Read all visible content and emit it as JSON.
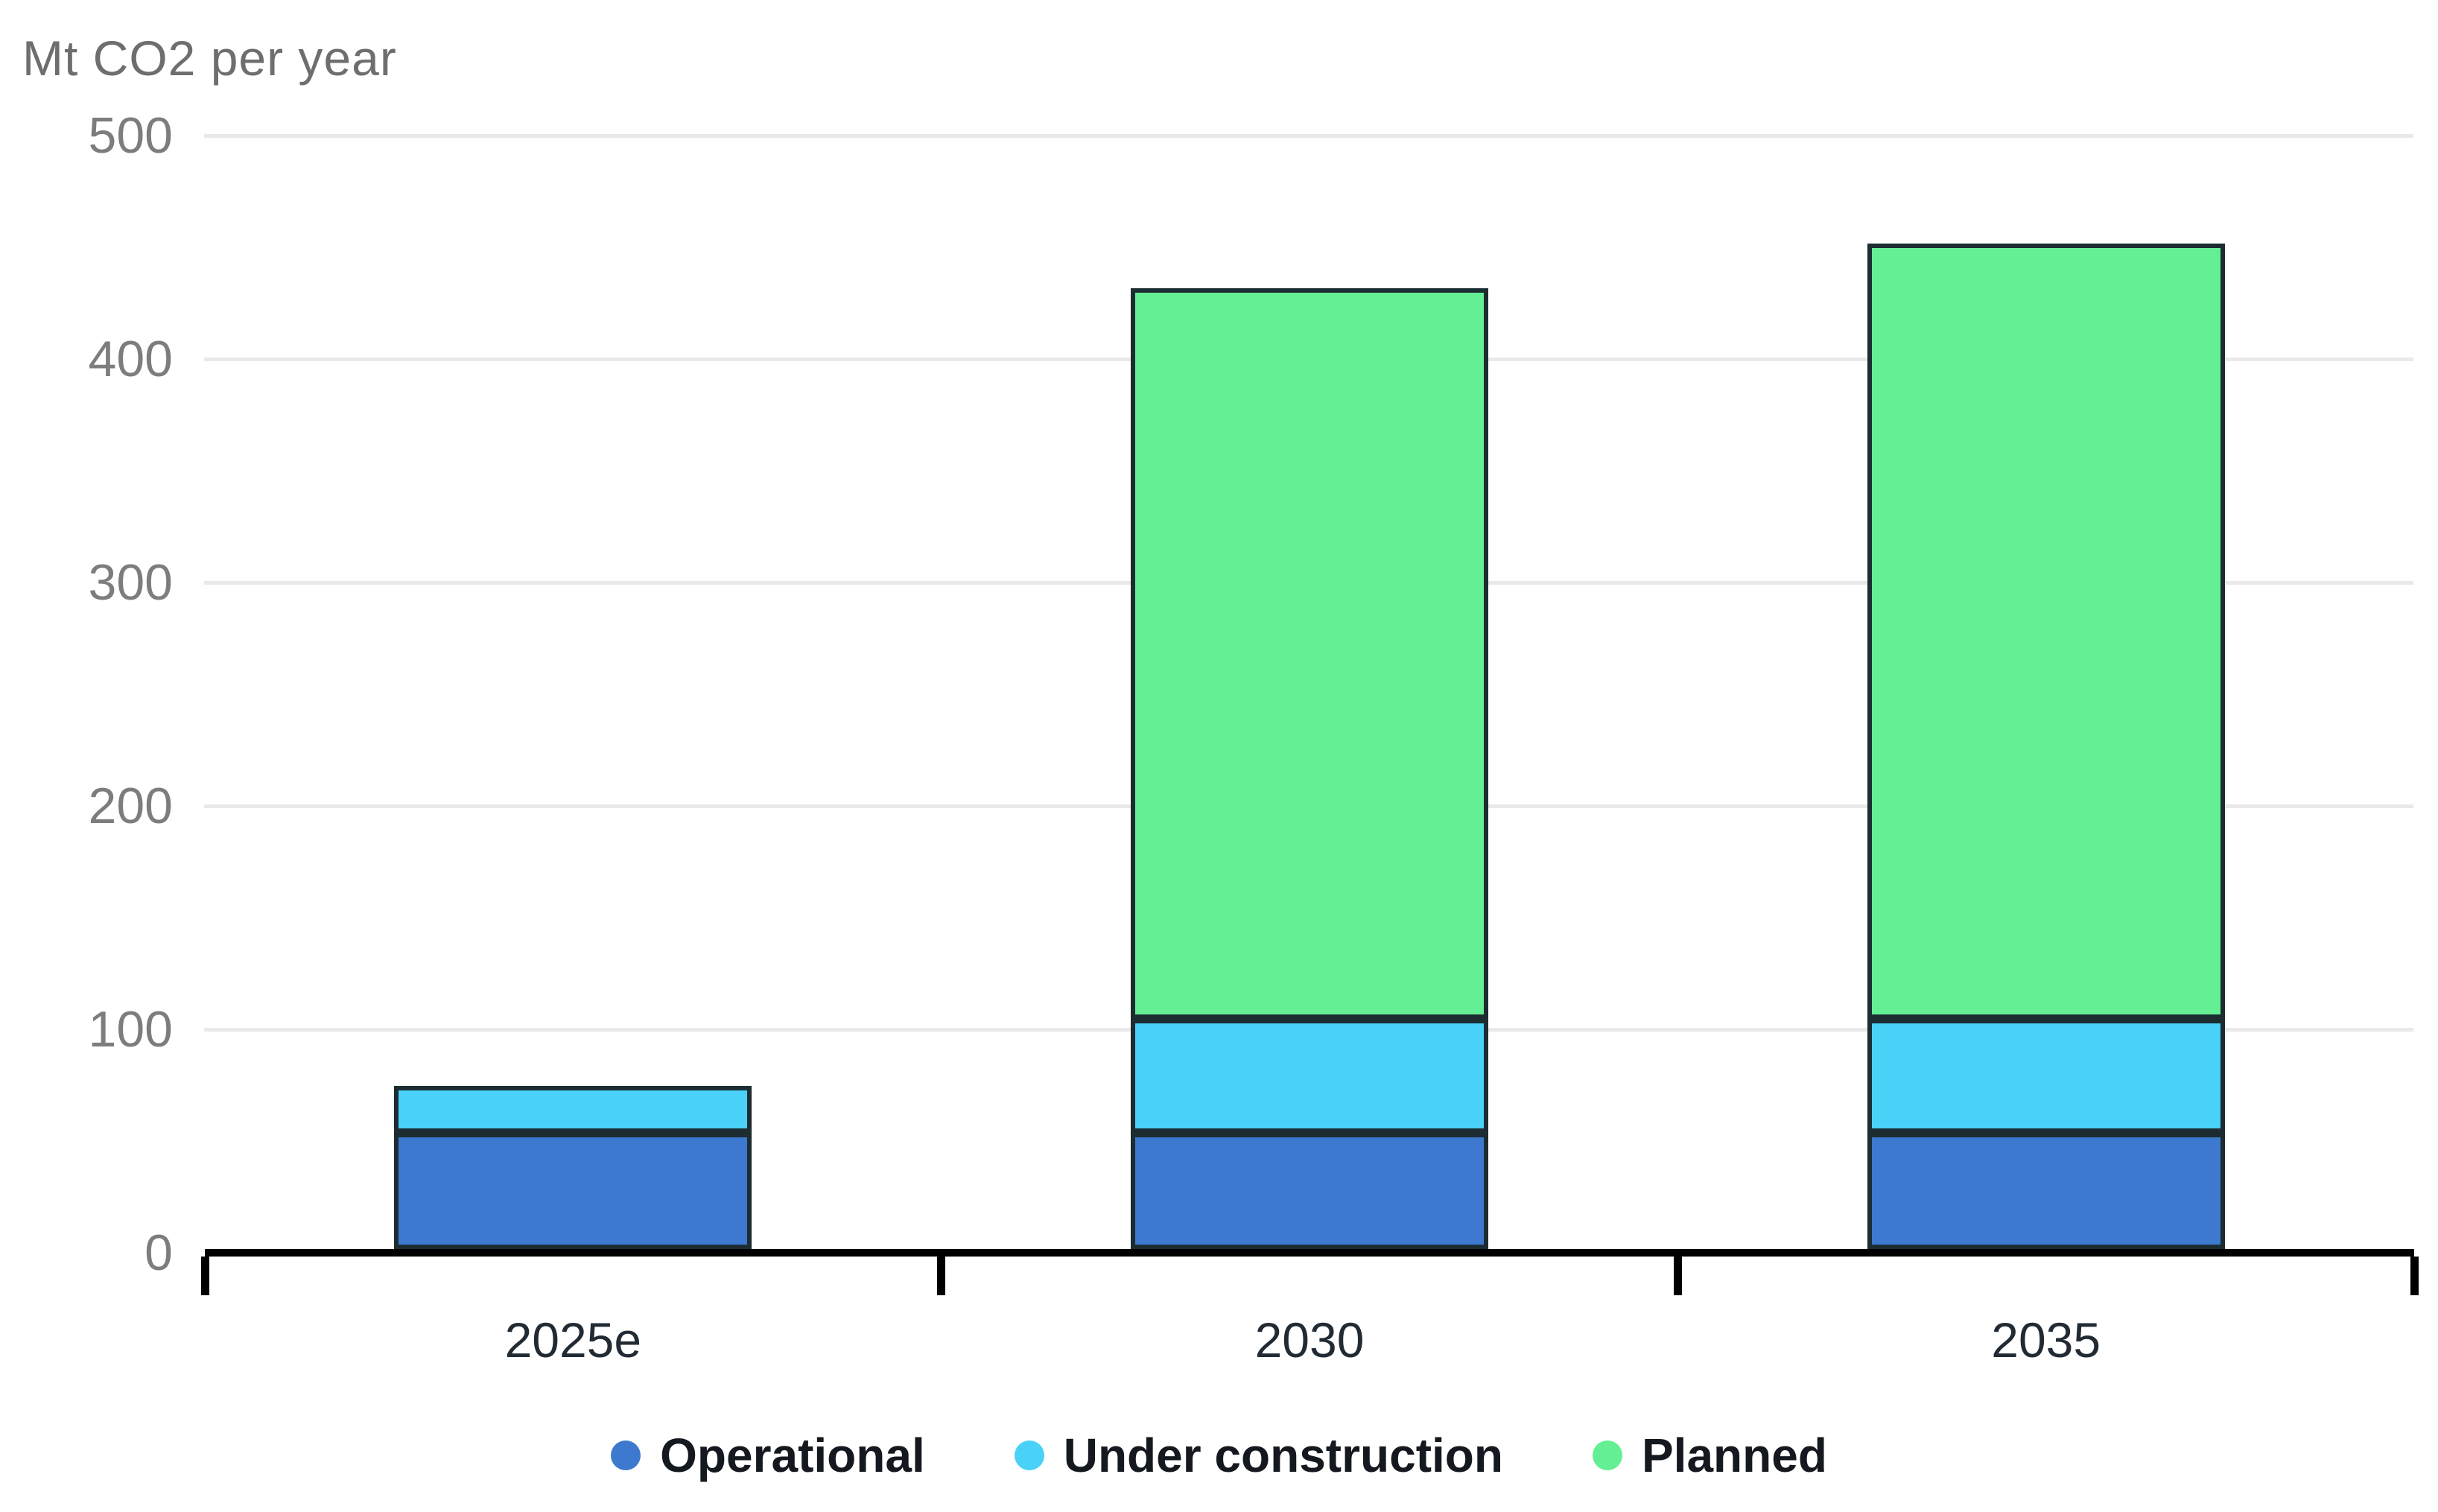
{
  "title": "Mt CO2 per year",
  "chart_data": {
    "type": "bar",
    "stacked": true,
    "title": "Mt CO2 per year",
    "ylabel": "Mt CO2 per year",
    "xlabel": "",
    "categories": [
      "2025e",
      "2030",
      "2035"
    ],
    "series": [
      {
        "name": "Operational",
        "color": "#3D79CE",
        "values": [
          52,
          52,
          52
        ]
      },
      {
        "name": "Under construction",
        "color": "#49D1F8",
        "values": [
          21,
          51,
          51
        ]
      },
      {
        "name": "Planned",
        "color": "#65EF94",
        "values": [
          0,
          327,
          347
        ]
      }
    ],
    "totals": [
      73,
      430,
      450
    ],
    "ylim": [
      0,
      500
    ],
    "yticks": [
      0,
      100,
      200,
      300,
      400,
      500
    ],
    "grid": "horizontal",
    "legend_position": "bottom"
  },
  "colors": {
    "gridline": "#E9E9E9",
    "axis": "#000000",
    "bar_border": "#1C2C31",
    "y_tick_label": "#7D7D7D",
    "x_tick_label": "#222B33",
    "title": "#6E6E6E",
    "legend_text": "#14181F",
    "background": "#FFFFFF"
  }
}
